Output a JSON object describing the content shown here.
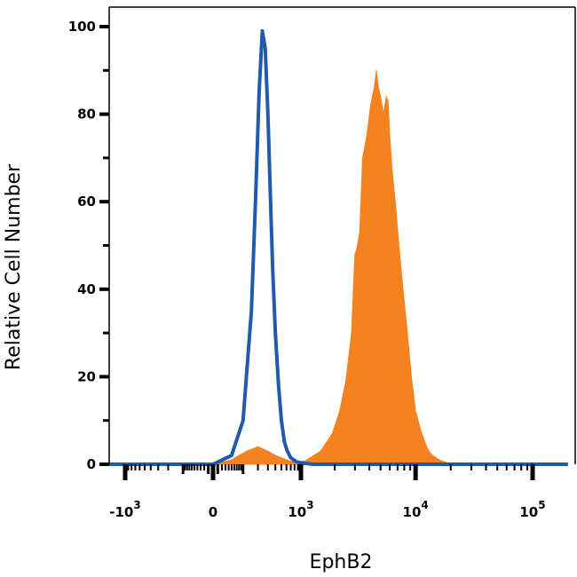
{
  "chart_data": {
    "type": "area",
    "title": "",
    "xlabel": "EphB2",
    "ylabel": "Relative Cell Number",
    "x_scale": "biexponential",
    "y_ticks": [
      0,
      20,
      40,
      60,
      80,
      100
    ],
    "ylim": [
      0,
      100
    ],
    "x_ticks": [
      {
        "value": -1000,
        "base": "-10",
        "exp": "3"
      },
      {
        "value": 0,
        "base": "0",
        "exp": ""
      },
      {
        "value": 1000,
        "base": "10",
        "exp": "3"
      },
      {
        "value": 10000,
        "base": "10",
        "exp": "4"
      },
      {
        "value": 100000,
        "base": "10",
        "exp": "5"
      }
    ],
    "grid": false,
    "legend": "none",
    "series": [
      {
        "style": "filled",
        "color": "#F58220",
        "x": [
          -2000,
          0,
          50,
          80,
          120,
          200,
          300,
          400,
          500,
          600,
          800,
          1100,
          1500,
          1900,
          2200,
          2500,
          2800,
          3000,
          3100,
          3300,
          3500,
          3800,
          4100,
          4400,
          4600,
          4800,
          5000,
          5300,
          5600,
          5800,
          6000,
          6300,
          6700,
          7200,
          7800,
          8500,
          9200,
          10000,
          11000,
          12000,
          13000,
          14000,
          16000,
          20000,
          200000
        ],
        "y": [
          0,
          0,
          1,
          2,
          3,
          4,
          3,
          2,
          1.5,
          1,
          0.5,
          0.8,
          3,
          7,
          12,
          19,
          30,
          48,
          49,
          53,
          70,
          75,
          82,
          86,
          90,
          86,
          84,
          80,
          84,
          83,
          75,
          67,
          60,
          50,
          40,
          30,
          20,
          12,
          8,
          5,
          3,
          2,
          1,
          0,
          0
        ]
      },
      {
        "style": "outline",
        "color": "#1F5AAB",
        "x": [
          -2000,
          0,
          50,
          100,
          150,
          180,
          210,
          240,
          270,
          300,
          330,
          360,
          400,
          450,
          500,
          560,
          620,
          700,
          850,
          1000,
          1300,
          200000
        ],
        "y": [
          0,
          0,
          2,
          10,
          35,
          60,
          85,
          99,
          95,
          80,
          62,
          45,
          30,
          18,
          10,
          5,
          3,
          1.5,
          0.6,
          0.3,
          0,
          0
        ]
      }
    ]
  }
}
